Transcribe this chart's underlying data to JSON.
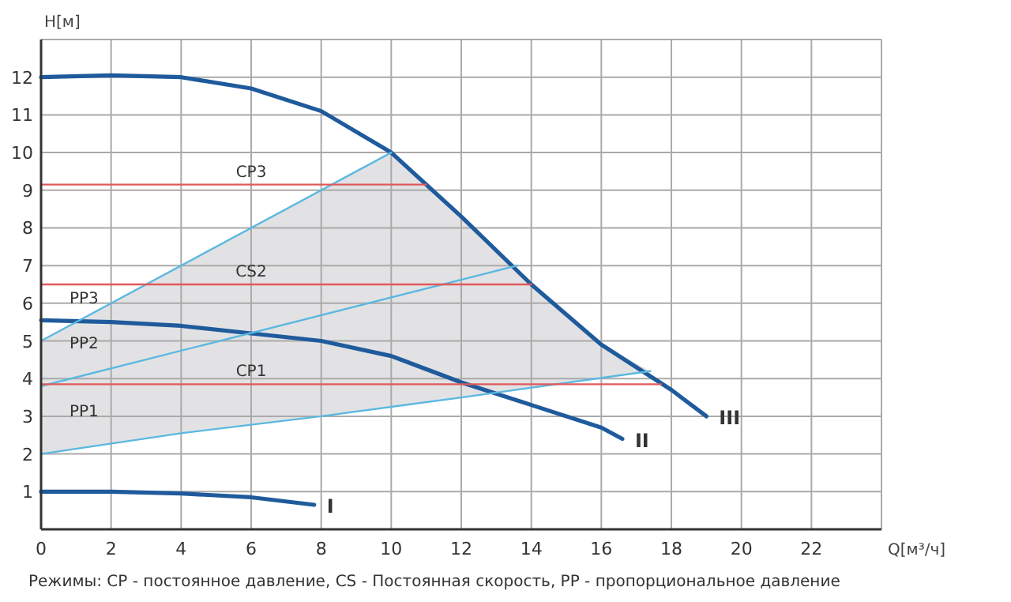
{
  "chart_data": {
    "type": "line",
    "xlabel": "Q[м³/ч]",
    "ylabel": "H[м]",
    "xlim": [
      0,
      24
    ],
    "ylim": [
      0,
      13
    ],
    "xticks": [
      0,
      2,
      4,
      6,
      8,
      10,
      12,
      14,
      16,
      18,
      20,
      22
    ],
    "yticks": [
      1,
      2,
      3,
      4,
      5,
      6,
      7,
      8,
      9,
      10,
      11,
      12
    ],
    "grid": true,
    "marker": "none",
    "series": [
      {
        "color": "#1f5b9c",
        "x": [
          0,
          2,
          4,
          6,
          8,
          10,
          12,
          14,
          16,
          18,
          19
        ],
        "values": [
          12,
          12.05,
          12,
          11.7,
          11.1,
          10,
          8.3,
          6.5,
          4.9,
          3.7,
          3
        ]
      },
      {
        "color": "#1f5b9c",
        "x": [
          0,
          2,
          4,
          6,
          8,
          10,
          12,
          14,
          16,
          16.6
        ],
        "values": [
          5.55,
          5.5,
          5.4,
          5.2,
          5,
          4.6,
          3.9,
          3.3,
          2.7,
          2.4
        ]
      },
      {
        "color": "#1f5b9c",
        "x": [
          0,
          2,
          4,
          6,
          7.8
        ],
        "values": [
          1,
          1,
          0.95,
          0.85,
          0.65
        ]
      },
      {
        "color": "#5bb8e0",
        "x": [
          0,
          10
        ],
        "values": [
          5,
          10
        ]
      },
      {
        "color": "#5bb8e0",
        "x": [
          0,
          13.6
        ],
        "values": [
          3.8,
          7
        ]
      },
      {
        "color": "#5bb8e0",
        "x": [
          0,
          4,
          8,
          12,
          17.4
        ],
        "values": [
          2,
          2.55,
          3,
          3.5,
          4.2
        ]
      },
      {
        "color": "#e05a5a",
        "x": [
          0,
          11
        ],
        "values": [
          9.15,
          9.15
        ]
      },
      {
        "color": "#e05a5a",
        "x": [
          0,
          14
        ],
        "values": [
          6.5,
          6.5
        ]
      },
      {
        "color": "#e05a5a",
        "x": [
          0,
          17.7
        ],
        "values": [
          3.85,
          3.85
        ]
      }
    ],
    "annotations": [
      {
        "text": "III",
        "x": 19,
        "y": 3
      },
      {
        "text": "II",
        "x": 16.6,
        "y": 2.4
      },
      {
        "text": "I",
        "x": 7.8,
        "y": 0.65
      },
      {
        "text": "CP3",
        "x": 6,
        "y": 9.15
      },
      {
        "text": "CS2",
        "x": 6,
        "y": 6.5
      },
      {
        "text": "CP1",
        "x": 6,
        "y": 3.85
      },
      {
        "text": "PP3",
        "x": 0,
        "y": 5
      },
      {
        "text": "PP2",
        "x": 0,
        "y": 3.8
      },
      {
        "text": "PP1",
        "x": 0,
        "y": 2
      },
      "Режимы: CP - постоянное давление, CS - Постоянная скорость, PP - пропорциональное давление"
    ]
  }
}
